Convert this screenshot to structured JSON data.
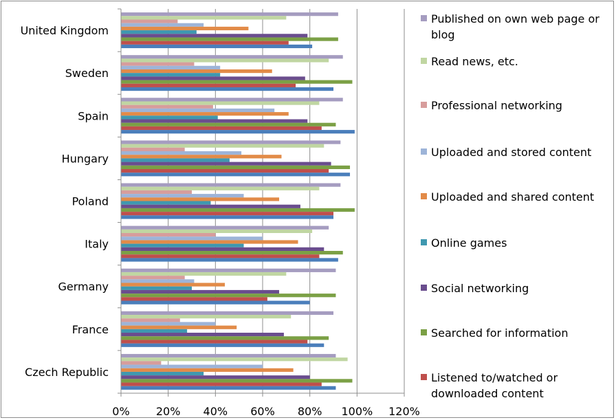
{
  "chart_data": {
    "type": "bar",
    "orientation": "horizontal",
    "categories": [
      "United Kingdom",
      "Sweden",
      "Spain",
      "Hungary",
      "Poland",
      "Italy",
      "Germany",
      "France",
      "Czech Republic"
    ],
    "series": [
      {
        "name": "Published on own web page or blog",
        "color": "#a59cc0",
        "values": [
          92,
          94,
          94,
          93,
          93,
          88,
          91,
          90,
          91
        ]
      },
      {
        "name": "Read news, etc.",
        "color": "#c0d6a2",
        "values": [
          70,
          88,
          84,
          86,
          84,
          81,
          70,
          72,
          96
        ]
      },
      {
        "name": "Professional networking",
        "color": "#d79d9c",
        "values": [
          24,
          31,
          39,
          27,
          30,
          40,
          27,
          25,
          17
        ]
      },
      {
        "name": "Uploaded and stored content",
        "color": "#9db4d8",
        "values": [
          35,
          42,
          65,
          51,
          52,
          60,
          31,
          40,
          60
        ]
      },
      {
        "name": "Uploaded and shared content",
        "color": "#e28b48",
        "values": [
          54,
          64,
          71,
          68,
          67,
          75,
          44,
          49,
          73
        ]
      },
      {
        "name": "Online games",
        "color": "#3f98b0",
        "values": [
          32,
          42,
          41,
          46,
          38,
          52,
          30,
          28,
          35
        ]
      },
      {
        "name": "Social networking",
        "color": "#6a4d8e",
        "values": [
          79,
          78,
          79,
          89,
          76,
          86,
          67,
          69,
          80
        ]
      },
      {
        "name": "Searched for information",
        "color": "#7ba045",
        "values": [
          92,
          98,
          91,
          97,
          99,
          94,
          91,
          88,
          98
        ]
      },
      {
        "name": "Listened to/watched or downloaded content",
        "color": "#bf4f4c",
        "values": [
          71,
          74,
          85,
          88,
          90,
          84,
          62,
          79,
          85
        ]
      },
      {
        "name": "",
        "color": "#4a7ebb",
        "values": [
          81,
          90,
          99,
          97,
          90,
          92,
          80,
          86,
          91
        ]
      }
    ],
    "xlim": [
      0,
      120
    ],
    "xticks": [
      0,
      20,
      40,
      60,
      80,
      100,
      120
    ],
    "tick_labels": [
      "0%",
      "20%",
      "40%",
      "60%",
      "80%",
      "100%",
      "120%"
    ],
    "grid": true,
    "legend_position": "right"
  }
}
